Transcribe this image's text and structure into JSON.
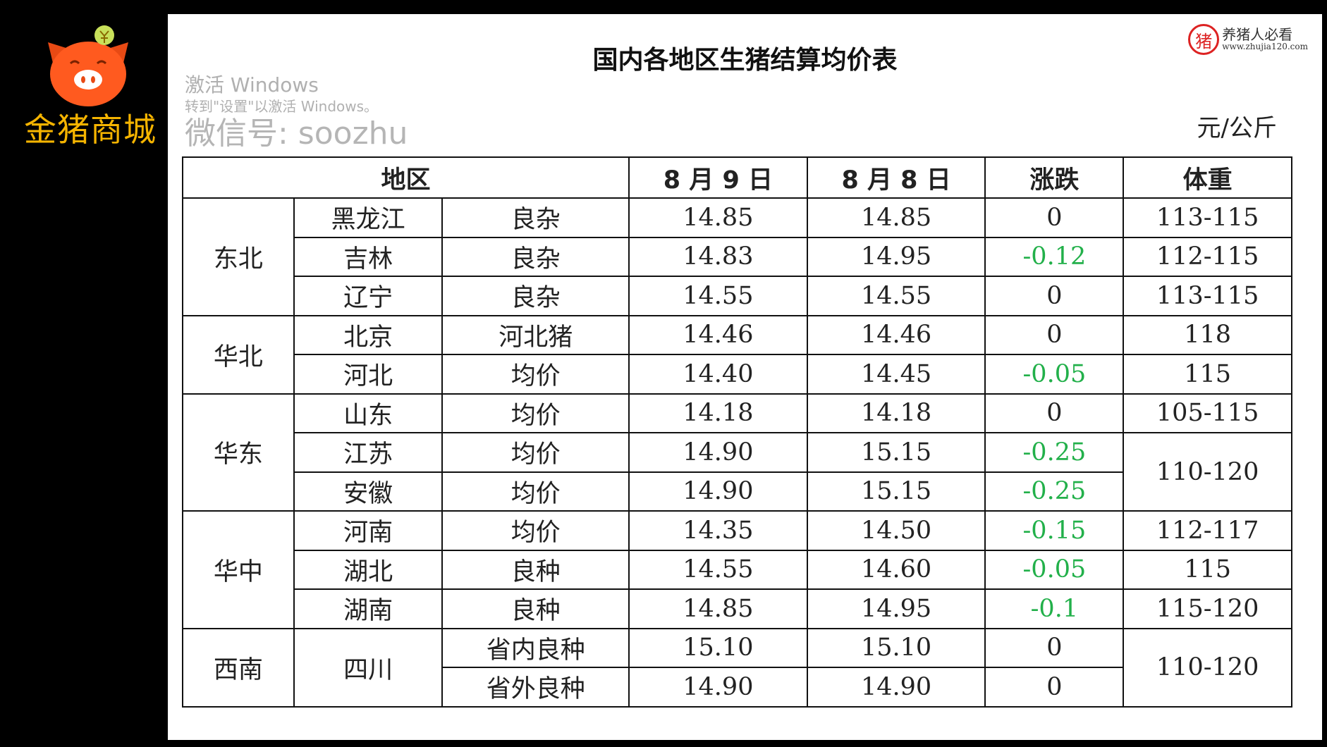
{
  "brand": {
    "name": "金猪商城",
    "logo_color": "#ff5a1f",
    "text_color": "#f5b400"
  },
  "title": "国内各地区生猪结算均价表",
  "unit": "元/公斤",
  "headers": [
    "地区",
    "8 月 9 日",
    "8 月 8 日",
    "涨跌",
    "体重"
  ],
  "colors": {
    "negative": "#22b04a"
  },
  "groups": [
    {
      "region": "东北",
      "rows": [
        {
          "province": "黑龙江",
          "type": "良杂",
          "aug9": "14.85",
          "aug8": "14.85",
          "change": "0",
          "weight": "113-115"
        },
        {
          "province": "吉林",
          "type": "良杂",
          "aug9": "14.83",
          "aug8": "14.95",
          "change": "-0.12",
          "weight": "112-115"
        },
        {
          "province": "辽宁",
          "type": "良杂",
          "aug9": "14.55",
          "aug8": "14.55",
          "change": "0",
          "weight": "113-115"
        }
      ]
    },
    {
      "region": "华北",
      "rows": [
        {
          "province": "北京",
          "type": "河北猪",
          "aug9": "14.46",
          "aug8": "14.46",
          "change": "0",
          "weight": "118"
        },
        {
          "province": "河北",
          "type": "均价",
          "aug9": "14.40",
          "aug8": "14.45",
          "change": "-0.05",
          "weight": "115"
        }
      ]
    },
    {
      "region": "华东",
      "rows": [
        {
          "province": "山东",
          "type": "均价",
          "aug9": "14.18",
          "aug8": "14.18",
          "change": "0",
          "weight": "105-115"
        },
        {
          "province": "江苏",
          "type": "均价",
          "aug9": "14.90",
          "aug8": "15.15",
          "change": "-0.25",
          "weight": "110-120"
        },
        {
          "province": "安徽",
          "type": "均价",
          "aug9": "14.90",
          "aug8": "15.15",
          "change": "-0.25",
          "weight": "110-120"
        }
      ]
    },
    {
      "region": "华中",
      "rows": [
        {
          "province": "河南",
          "type": "均价",
          "aug9": "14.35",
          "aug8": "14.50",
          "change": "-0.15",
          "weight": "112-117"
        },
        {
          "province": "湖北",
          "type": "良种",
          "aug9": "14.55",
          "aug8": "14.60",
          "change": "-0.05",
          "weight": "115"
        },
        {
          "province": "湖南",
          "type": "良种",
          "aug9": "14.85",
          "aug8": "14.95",
          "change": "-0.1",
          "weight": "115-120"
        }
      ]
    },
    {
      "region": "西南",
      "rows": [
        {
          "province": "四川",
          "type": "省内良种",
          "aug9": "15.10",
          "aug8": "15.10",
          "change": "0",
          "weight": "110-120"
        },
        {
          "province": "四川",
          "type": "省外良种",
          "aug9": "14.90",
          "aug8": "14.90",
          "change": "0",
          "weight": "110-120"
        }
      ]
    }
  ],
  "watermarks": {
    "activate_title": "激活 Windows",
    "activate_sub": "转到\"设置\"以激活 Windows。",
    "wechat": "微信号: soozhu",
    "stamp_char": "猪",
    "stamp_text": "养猪人必看",
    "stamp_url": "www.zhujia120.com"
  }
}
